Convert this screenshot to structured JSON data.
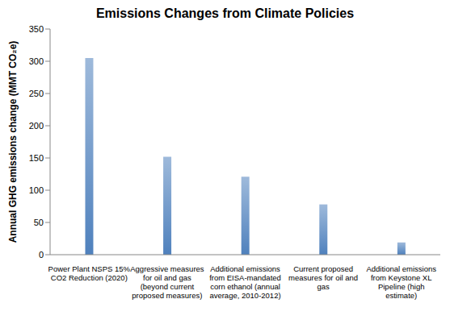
{
  "chart_data": {
    "type": "bar",
    "title": "Emissions Changes from Climate Policies",
    "y_label": "Annual GHG emissions change (MMT CO₂e)",
    "categories": [
      "Power Plant NSPS 15% CO2 Reduction (2020)",
      "Aggressive measures for oil and gas (beyond current proposed measures)",
      "Additional emissions from EISA-mandated corn ethanol (annual average, 2010-2012)",
      "Current proposed measures for oil and gas",
      "Additional emissions from Keystone XL Pipeline (high estimate)"
    ],
    "values": [
      305,
      152,
      121,
      78,
      19
    ],
    "color": "#4f81bd",
    "ylim": [
      0,
      350
    ],
    "yticks": [
      0,
      50,
      100,
      150,
      200,
      250,
      300,
      350
    ],
    "grid": false
  }
}
